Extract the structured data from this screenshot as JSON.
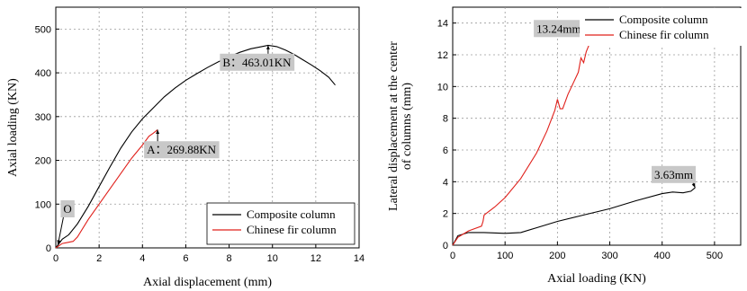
{
  "chart_data": [
    {
      "type": "line",
      "xlabel": "Axial displacement (mm)",
      "ylabel": "Axial loading (KN)",
      "xlim": [
        0,
        14
      ],
      "ylim": [
        0,
        550
      ],
      "xticks": [
        "0",
        "2",
        "4",
        "6",
        "8",
        "10",
        "12",
        "14"
      ],
      "yticks": [
        "0",
        "100",
        "200",
        "300",
        "400",
        "500"
      ],
      "grid": true,
      "legend_position": "bottom-right",
      "series": [
        {
          "name": "Composite column",
          "color": "#000000",
          "x": [
            0,
            0.3,
            0.6,
            1.0,
            1.5,
            2.0,
            2.5,
            3.0,
            3.5,
            4.0,
            4.5,
            5.0,
            5.5,
            6.0,
            6.5,
            7.0,
            7.5,
            8.0,
            8.5,
            9.0,
            9.5,
            9.8,
            10.2,
            10.6,
            11.0,
            11.4,
            11.8,
            12.2,
            12.6,
            12.9
          ],
          "y": [
            0,
            20,
            30,
            55,
            95,
            140,
            185,
            228,
            265,
            295,
            320,
            345,
            365,
            383,
            398,
            412,
            425,
            437,
            447,
            455,
            460,
            463,
            460,
            452,
            442,
            430,
            418,
            405,
            390,
            372
          ]
        },
        {
          "name": "Chinese fir column",
          "color": "#e0201b",
          "x": [
            0,
            0.3,
            0.5,
            0.8,
            1.0,
            1.5,
            2.0,
            2.5,
            3.0,
            3.5,
            4.0,
            4.3,
            4.5,
            4.7
          ],
          "y": [
            0,
            10,
            12,
            15,
            25,
            65,
            100,
            135,
            170,
            205,
            235,
            255,
            262,
            270
          ]
        }
      ],
      "annotations": [
        {
          "label": "O",
          "x": 0.35,
          "y": 80,
          "arrow_to": [
            0.1,
            8
          ]
        },
        {
          "label": "A：269.88KN",
          "x": 4.2,
          "y": 215,
          "arrow_to": [
            4.7,
            270
          ]
        },
        {
          "label": "B：463.01KN",
          "x": 7.7,
          "y": 415,
          "arrow_to": [
            9.8,
            463
          ]
        }
      ]
    },
    {
      "type": "line",
      "xlabel": "Axial loading (KN)",
      "ylabel": "Lateral displacement at the center of columns (mm)",
      "xlim": [
        0,
        550
      ],
      "ylim": [
        0,
        15
      ],
      "xticks": [
        "0",
        "100",
        "200",
        "300",
        "400",
        "500"
      ],
      "yticks": [
        "0",
        "2",
        "4",
        "6",
        "8",
        "10",
        "12",
        "14"
      ],
      "grid": true,
      "legend_position": "top-right",
      "series": [
        {
          "name": "Composite column",
          "color": "#000000",
          "x": [
            0,
            10,
            30,
            60,
            100,
            130,
            160,
            200,
            250,
            300,
            350,
            400,
            420,
            440,
            455,
            463
          ],
          "y": [
            0,
            0.6,
            0.8,
            0.8,
            0.75,
            0.8,
            1.1,
            1.5,
            1.9,
            2.3,
            2.8,
            3.25,
            3.35,
            3.3,
            3.4,
            3.63
          ]
        },
        {
          "name": "Chinese fir column",
          "color": "#e0201b",
          "x": [
            0,
            10,
            30,
            55,
            58,
            60,
            80,
            100,
            130,
            160,
            180,
            195,
            200,
            205,
            210,
            220,
            230,
            240,
            245,
            250,
            255,
            260,
            265,
            270
          ],
          "y": [
            0,
            0.5,
            0.9,
            1.2,
            1.5,
            1.9,
            2.4,
            3.0,
            4.2,
            5.8,
            7.2,
            8.5,
            9.2,
            8.6,
            8.6,
            9.5,
            10.2,
            10.9,
            11.8,
            11.5,
            12.2,
            12.6,
            13.0,
            13.24
          ]
        }
      ],
      "annotations": [
        {
          "label": "13.24mm",
          "x": 160,
          "y": 13.4,
          "arrow_to": [
            268,
            13.24
          ]
        },
        {
          "label": "3.63mm",
          "x": 385,
          "y": 4.2,
          "arrow_to": [
            463,
            3.63
          ]
        }
      ]
    }
  ]
}
